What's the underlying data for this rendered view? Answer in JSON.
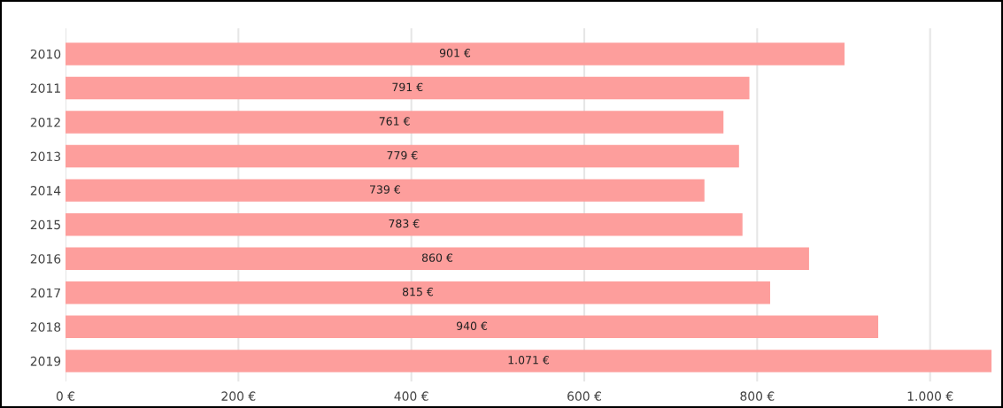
{
  "chart_data": {
    "type": "bar",
    "orientation": "horizontal",
    "categories": [
      "2010",
      "2011",
      "2012",
      "2013",
      "2014",
      "2015",
      "2016",
      "2017",
      "2018",
      "2019"
    ],
    "values": [
      901,
      791,
      761,
      779,
      739,
      783,
      860,
      815,
      940,
      1071
    ],
    "value_labels": [
      "901 €",
      "791 €",
      "761 €",
      "779 €",
      "739 €",
      "783 €",
      "860 €",
      "815 €",
      "940 €",
      "1.071 €"
    ],
    "color": "#fd9e9c",
    "xlim": [
      0,
      1071
    ],
    "xticks": [
      {
        "value": 0,
        "label": "0 €"
      },
      {
        "value": 200,
        "label": "200 €"
      },
      {
        "value": 400,
        "label": "400 €"
      },
      {
        "value": 600,
        "label": "600 €"
      },
      {
        "value": 800,
        "label": "800 €"
      },
      {
        "value": 1000,
        "label": "1.000 €"
      }
    ],
    "grid": "x"
  }
}
